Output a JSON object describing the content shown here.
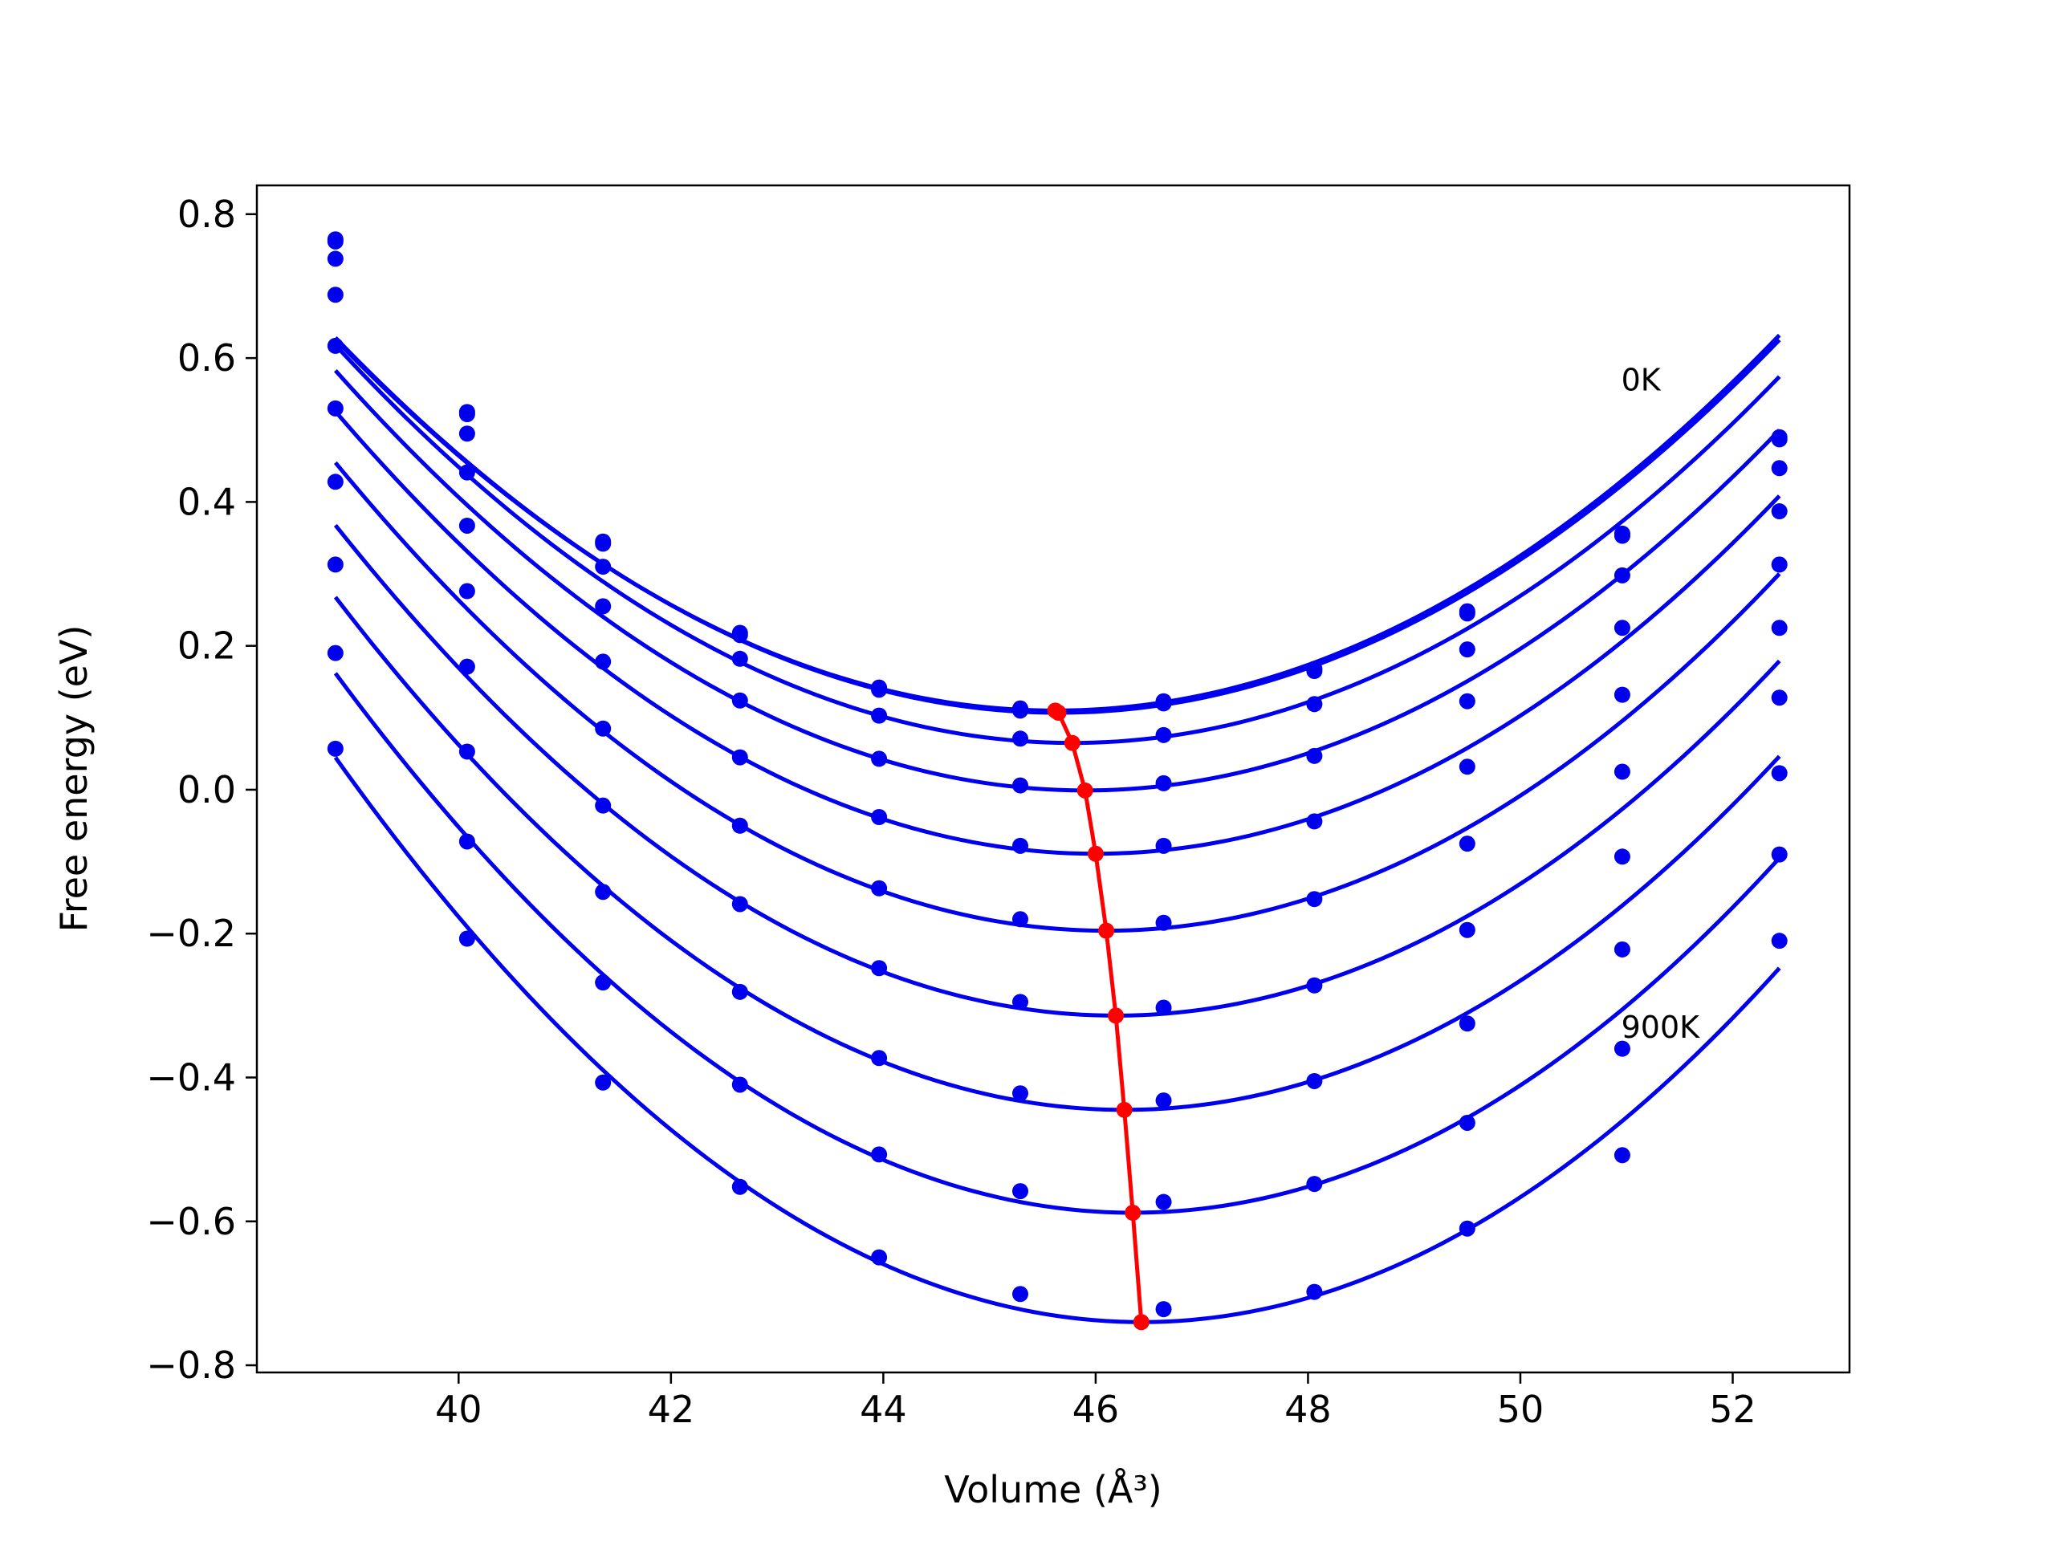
{
  "chart_data": {
    "type": "line",
    "title": "",
    "xlabel": "Volume (Å³)",
    "ylabel": "Free energy (eV)",
    "xlim": [
      38.1,
      53.1
    ],
    "ylim": [
      -0.81,
      0.84
    ],
    "xticks": [
      40,
      42,
      44,
      46,
      48,
      50,
      52
    ],
    "yticks": [
      -0.8,
      -0.6,
      -0.4,
      -0.2,
      0.0,
      0.2,
      0.4,
      0.6,
      0.8
    ],
    "xtick_labels": [
      "40",
      "42",
      "44",
      "46",
      "48",
      "50",
      "52"
    ],
    "ytick_labels": [
      "−0.8",
      "−0.6",
      "−0.4",
      "−0.2",
      "0.0",
      "0.2",
      "0.4",
      "0.6",
      "0.8"
    ],
    "grid": false,
    "colors": {
      "data": "#0000ee",
      "minimum": "#ff0000"
    },
    "annotations": [
      {
        "text": "0K",
        "x": 50.95,
        "y": 0.555
      },
      {
        "text": "900K",
        "x": 50.95,
        "y": -0.345
      }
    ],
    "x": [
      38.84,
      40.08,
      41.36,
      42.65,
      43.96,
      45.29,
      46.64,
      48.06,
      49.5,
      50.96,
      52.44
    ],
    "series": [
      {
        "values": [
          0.765,
          0.525,
          0.345,
          0.218,
          0.142,
          0.113,
          0.123,
          0.168,
          0.248,
          0.356,
          0.49
        ],
        "fit_minimum": {
          "x": 45.62,
          "y": 0.11
        }
      },
      {
        "values": [
          0.762,
          0.522,
          0.342,
          0.215,
          0.139,
          0.11,
          0.12,
          0.165,
          0.245,
          0.353,
          0.487
        ],
        "fit_minimum": {
          "x": 45.65,
          "y": 0.107
        }
      },
      {
        "values": [
          0.738,
          0.495,
          0.31,
          0.182,
          0.103,
          0.071,
          0.076,
          0.119,
          0.195,
          0.298,
          0.447
        ],
        "fit_minimum": {
          "x": 45.78,
          "y": 0.065
        }
      },
      {
        "values": [
          0.688,
          0.441,
          0.255,
          0.124,
          0.043,
          0.006,
          0.009,
          0.047,
          0.123,
          0.225,
          0.387
        ],
        "fit_minimum": {
          "x": 45.9,
          "y": -0.001
        }
      },
      {
        "values": [
          0.617,
          0.367,
          0.178,
          0.045,
          -0.038,
          -0.078,
          -0.078,
          -0.044,
          0.032,
          0.132,
          0.313
        ],
        "fit_minimum": {
          "x": 46.0,
          "y": -0.089
        }
      },
      {
        "values": [
          0.53,
          0.276,
          0.085,
          -0.05,
          -0.137,
          -0.18,
          -0.185,
          -0.152,
          -0.075,
          0.025,
          0.225
        ],
        "fit_minimum": {
          "x": 46.1,
          "y": -0.196
        }
      },
      {
        "values": [
          0.428,
          0.171,
          -0.022,
          -0.159,
          -0.248,
          -0.295,
          -0.303,
          -0.272,
          -0.195,
          -0.093,
          0.128
        ],
        "fit_minimum": {
          "x": 46.19,
          "y": -0.314
        }
      },
      {
        "values": [
          0.313,
          0.053,
          -0.142,
          -0.281,
          -0.373,
          -0.422,
          -0.432,
          -0.405,
          -0.325,
          -0.222,
          0.023
        ],
        "fit_minimum": {
          "x": 46.27,
          "y": -0.445
        }
      },
      {
        "values": [
          0.19,
          -0.072,
          -0.268,
          -0.41,
          -0.507,
          -0.558,
          -0.573,
          -0.548,
          -0.463,
          -0.36,
          -0.09
        ],
        "fit_minimum": {
          "x": 46.35,
          "y": -0.588
        }
      },
      {
        "values": [
          0.057,
          -0.207,
          -0.407,
          -0.552,
          -0.65,
          -0.701,
          -0.722,
          -0.698,
          -0.61,
          -0.508,
          -0.21
        ],
        "fit_minimum": {
          "x": 46.43,
          "y": -0.74
        }
      }
    ]
  }
}
